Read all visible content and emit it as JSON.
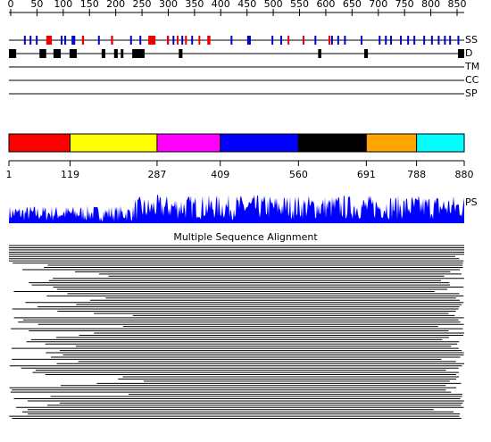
{
  "ruler": {
    "ticks": [
      0,
      50,
      100,
      150,
      200,
      250,
      300,
      350,
      400,
      450,
      500,
      550,
      600,
      650,
      700,
      750,
      800,
      850
    ]
  },
  "tracks": {
    "labels": [
      "SS",
      "D",
      "TM",
      "CC",
      "SP"
    ]
  },
  "secondary_structure": [
    {
      "start": 30,
      "end": 33,
      "color": "#0000cc"
    },
    {
      "start": 41,
      "end": 44,
      "color": "#0000cc"
    },
    {
      "start": 53,
      "end": 56,
      "color": "#0000cc"
    },
    {
      "start": 73,
      "end": 84,
      "color": "#ee0000"
    },
    {
      "start": 101,
      "end": 104,
      "color": "#0000cc"
    },
    {
      "start": 108,
      "end": 111,
      "color": "#0000cc"
    },
    {
      "start": 122,
      "end": 129,
      "color": "#0000cc"
    },
    {
      "start": 142,
      "end": 146,
      "color": "#ee0000"
    },
    {
      "start": 173,
      "end": 176,
      "color": "#0000cc"
    },
    {
      "start": 198,
      "end": 202,
      "color": "#ee0000"
    },
    {
      "start": 235,
      "end": 238,
      "color": "#0000cc"
    },
    {
      "start": 253,
      "end": 256,
      "color": "#0000cc"
    },
    {
      "start": 270,
      "end": 284,
      "color": "#ee0000"
    },
    {
      "start": 306,
      "end": 310,
      "color": "#ee0000"
    },
    {
      "start": 317,
      "end": 320,
      "color": "#0000cc"
    },
    {
      "start": 325,
      "end": 328,
      "color": "#ee0000"
    },
    {
      "start": 334,
      "end": 337,
      "color": "#0000cc"
    },
    {
      "start": 341,
      "end": 344,
      "color": "#ee0000"
    },
    {
      "start": 353,
      "end": 356,
      "color": "#0000cc"
    },
    {
      "start": 367,
      "end": 370,
      "color": "#ee0000"
    },
    {
      "start": 384,
      "end": 390,
      "color": "#ee0000"
    },
    {
      "start": 429,
      "end": 432,
      "color": "#0000cc"
    },
    {
      "start": 461,
      "end": 468,
      "color": "#0000cc"
    },
    {
      "start": 508,
      "end": 511,
      "color": "#0000cc"
    },
    {
      "start": 525,
      "end": 528,
      "color": "#0000cc"
    },
    {
      "start": 539,
      "end": 542,
      "color": "#ee0000"
    },
    {
      "start": 568,
      "end": 571,
      "color": "#ee0000"
    },
    {
      "start": 591,
      "end": 594,
      "color": "#0000cc"
    },
    {
      "start": 618,
      "end": 621,
      "color": "#ee0000"
    },
    {
      "start": 623,
      "end": 626,
      "color": "#0000cc"
    },
    {
      "start": 635,
      "end": 638,
      "color": "#0000cc"
    },
    {
      "start": 648,
      "end": 651,
      "color": "#0000cc"
    },
    {
      "start": 680,
      "end": 683,
      "color": "#0000cc"
    },
    {
      "start": 715,
      "end": 718,
      "color": "#0000cc"
    },
    {
      "start": 727,
      "end": 730,
      "color": "#0000cc"
    },
    {
      "start": 737,
      "end": 740,
      "color": "#0000cc"
    },
    {
      "start": 756,
      "end": 759,
      "color": "#0000cc"
    },
    {
      "start": 770,
      "end": 773,
      "color": "#0000cc"
    },
    {
      "start": 782,
      "end": 785,
      "color": "#0000cc"
    },
    {
      "start": 801,
      "end": 804,
      "color": "#0000cc"
    },
    {
      "start": 816,
      "end": 819,
      "color": "#0000cc"
    },
    {
      "start": 829,
      "end": 832,
      "color": "#0000cc"
    },
    {
      "start": 841,
      "end": 844,
      "color": "#0000cc"
    },
    {
      "start": 851,
      "end": 854,
      "color": "#0000cc"
    },
    {
      "start": 867,
      "end": 870,
      "color": "#0000cc"
    }
  ],
  "disorder": [
    {
      "start": 1,
      "end": 15
    },
    {
      "start": 60,
      "end": 73
    },
    {
      "start": 87,
      "end": 101
    },
    {
      "start": 118,
      "end": 132
    },
    {
      "start": 180,
      "end": 187
    },
    {
      "start": 204,
      "end": 211
    },
    {
      "start": 217,
      "end": 222
    },
    {
      "start": 239,
      "end": 263
    },
    {
      "start": 329,
      "end": 336
    },
    {
      "start": 598,
      "end": 604
    },
    {
      "start": 687,
      "end": 694
    },
    {
      "start": 868,
      "end": 880
    }
  ],
  "domains": {
    "boundaries": [
      1,
      119,
      287,
      409,
      560,
      691,
      788,
      880
    ],
    "colors": [
      "#ff0000",
      "#ffff00",
      "#ff00ff",
      "#0000ff",
      "#000000",
      "#ffa500",
      "#00ffff"
    ]
  },
  "ps": {
    "label": "PS"
  },
  "msa": {
    "title": "Multiple Sequence Alignment"
  }
}
